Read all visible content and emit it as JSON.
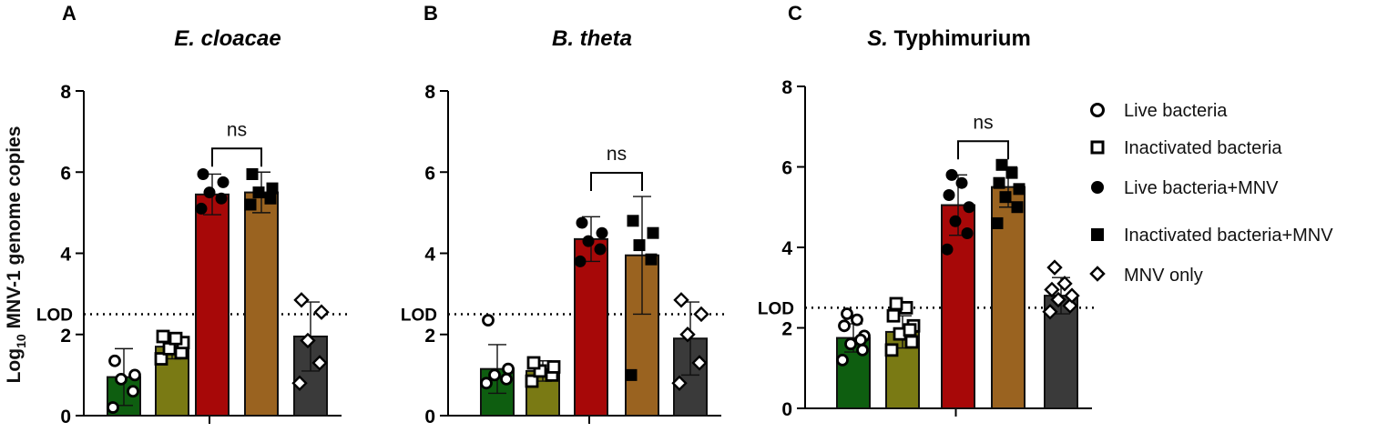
{
  "figure": {
    "ylabel_main": "Log",
    "ylabel_sub": "10",
    "ylabel_rest": " MNV-1 genome copies",
    "lod_label": "LOD",
    "ns_label": "ns"
  },
  "colors": {
    "live": "#0e5e10",
    "inactivated": "#7a7a14",
    "live_mnv": "#a70808",
    "inactivated_mnv": "#9a6320",
    "mnv_only": "#3a3a3a"
  },
  "legend": [
    {
      "label": "Live bacteria",
      "marker": "circle-open"
    },
    {
      "label": "Inactivated bacteria",
      "marker": "square-open"
    },
    {
      "label": "Live bacteria+MNV",
      "marker": "circle-filled"
    },
    {
      "label": "Inactivated bacteria+MNV",
      "marker": "square-filled"
    },
    {
      "label": "MNV only",
      "marker": "diamond-open"
    }
  ],
  "chart_data": [
    {
      "type": "bar",
      "panel": "A",
      "title_italic": "E. cloacae",
      "title_rest": "",
      "ylabel": "Log10 MNV-1 genome copies",
      "ylim": [
        0,
        8
      ],
      "yticks": [
        "0",
        "2",
        "4",
        "6",
        "8"
      ],
      "lod": 2.5,
      "categories": [
        "Live bacteria",
        "Inactivated bacteria",
        "Live bacteria+MNV",
        "Inactivated bacteria+MNV",
        "MNV only"
      ],
      "values": [
        0.95,
        1.7,
        5.45,
        5.5,
        1.95
      ],
      "error": [
        0.7,
        0.3,
        0.5,
        0.5,
        0.85
      ],
      "points": [
        [
          0.2,
          0.6,
          0.9,
          1.0,
          1.35
        ],
        [
          1.4,
          1.55,
          1.65,
          1.8,
          1.95,
          1.9
        ],
        [
          5.1,
          5.35,
          5.5,
          5.75,
          5.95
        ],
        [
          5.2,
          5.35,
          5.5,
          5.6,
          5.95
        ],
        [
          0.8,
          1.3,
          1.85,
          2.55,
          2.85
        ]
      ],
      "significance": {
        "pair": [
          2,
          3
        ],
        "label": "ns"
      }
    },
    {
      "type": "bar",
      "panel": "B",
      "title_italic": "B. theta",
      "title_rest": "",
      "ylabel": "",
      "ylim": [
        0,
        8
      ],
      "yticks": [
        "0",
        "2",
        "4",
        "6",
        "8"
      ],
      "lod": 2.5,
      "categories": [
        "Live bacteria",
        "Inactivated bacteria",
        "Live bacteria+MNV",
        "Inactivated bacteria+MNV",
        "MNV only"
      ],
      "values": [
        1.15,
        1.1,
        4.35,
        3.95,
        1.9
      ],
      "error": [
        0.6,
        0.25,
        0.55,
        1.45,
        0.9
      ],
      "points": [
        [
          0.8,
          0.9,
          1.0,
          1.15,
          2.35
        ],
        [
          0.85,
          1.0,
          1.1,
          1.2,
          1.3
        ],
        [
          3.8,
          4.1,
          4.3,
          4.5,
          4.75
        ],
        [
          1.0,
          3.85,
          4.2,
          4.5,
          4.8
        ],
        [
          0.8,
          1.3,
          2.0,
          2.5,
          2.85
        ]
      ],
      "significance": {
        "pair": [
          2,
          3
        ],
        "label": "ns"
      }
    },
    {
      "type": "bar",
      "panel": "C",
      "title_italic": "S.",
      "title_rest": " Typhimurium",
      "ylabel": "",
      "ylim": [
        0,
        8
      ],
      "yticks": [
        "0",
        "2",
        "4",
        "6",
        "8"
      ],
      "lod": 2.5,
      "categories": [
        "Live bacteria",
        "Inactivated bacteria",
        "Live bacteria+MNV",
        "Inactivated bacteria+MNV",
        "MNV only"
      ],
      "values": [
        1.75,
        1.9,
        5.05,
        5.5,
        2.8
      ],
      "error": [
        0.35,
        0.4,
        0.75,
        0.5,
        0.45
      ],
      "points": [
        [
          1.2,
          1.45,
          1.6,
          1.8,
          2.05,
          2.2,
          2.35,
          1.7
        ],
        [
          1.45,
          1.65,
          1.85,
          2.05,
          2.3,
          2.5,
          2.6,
          1.95
        ],
        [
          3.95,
          4.35,
          4.65,
          5.0,
          5.3,
          5.6,
          5.8
        ],
        [
          4.6,
          5.0,
          5.25,
          5.45,
          5.6,
          5.85,
          6.05
        ],
        [
          2.4,
          2.55,
          2.7,
          2.8,
          2.95,
          3.1,
          3.5
        ]
      ],
      "significance": {
        "pair": [
          2,
          3
        ],
        "label": "ns"
      }
    }
  ]
}
